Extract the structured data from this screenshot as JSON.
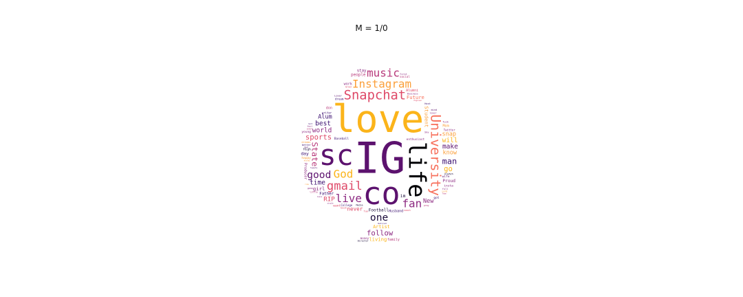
{
  "chart_data": {
    "type": "wordcloud",
    "title": "M = 1/0",
    "palette": [
      "#000004",
      "#3b0f70",
      "#5c126e",
      "#8c2981",
      "#b73779",
      "#de4968",
      "#f7705c",
      "#fb9f3a",
      "#fcb519",
      "#f5db4b"
    ],
    "words": [
      {
        "text": "IG",
        "weight": 100,
        "color": "#5c126e",
        "vertical": false
      },
      {
        "text": "love",
        "weight": 88,
        "color": "#fbb41a",
        "vertical": false
      },
      {
        "text": "life",
        "weight": 84,
        "color": "#000004",
        "vertical": true
      },
      {
        "text": "co",
        "weight": 70,
        "color": "#5c126e",
        "vertical": false
      },
      {
        "text": "sc",
        "weight": 64,
        "color": "#5c126e",
        "vertical": false
      },
      {
        "text": "Snapchat",
        "weight": 34,
        "color": "#de4968",
        "vertical": false
      },
      {
        "text": "University",
        "weight": 28,
        "color": "#f7705c",
        "vertical": true
      },
      {
        "text": "gmail",
        "weight": 24,
        "color": "#de4968",
        "vertical": false
      },
      {
        "text": "Instagram",
        "weight": 22,
        "color": "#fb9f3a",
        "vertical": false
      },
      {
        "text": "God",
        "weight": 22,
        "color": "#fbb41a",
        "vertical": false
      },
      {
        "text": "live",
        "weight": 22,
        "color": "#8c2981",
        "vertical": false
      },
      {
        "text": "music",
        "weight": 22,
        "color": "#b73779",
        "vertical": false
      },
      {
        "text": "fan",
        "weight": 22,
        "color": "#8c2981",
        "vertical": false
      },
      {
        "text": "good",
        "weight": 20,
        "color": "#5c126e",
        "vertical": false
      },
      {
        "text": "one",
        "weight": 20,
        "color": "#1a0b3a",
        "vertical": false
      },
      {
        "text": "sports",
        "weight": 18,
        "color": "#de4968",
        "vertical": false
      },
      {
        "text": "follow",
        "weight": 18,
        "color": "#8c2981",
        "vertical": false
      },
      {
        "text": "State",
        "weight": 16,
        "color": "#b73779",
        "vertical": true
      },
      {
        "text": "world",
        "weight": 16,
        "color": "#8c2981",
        "vertical": false
      },
      {
        "text": "best",
        "weight": 16,
        "color": "#3b0f70",
        "vertical": false
      },
      {
        "text": "Football",
        "weight": 16,
        "color": "#1a0b3a",
        "vertical": false
      },
      {
        "text": "time",
        "weight": 16,
        "color": "#3b0f70",
        "vertical": false
      },
      {
        "text": "man",
        "weight": 16,
        "color": "#3b0f70",
        "vertical": false
      },
      {
        "text": "make",
        "weight": 16,
        "color": "#5c126e",
        "vertical": false
      },
      {
        "text": "never",
        "weight": 16,
        "color": "#de4968",
        "vertical": false
      },
      {
        "text": "will",
        "weight": 16,
        "color": "#fbb41a",
        "vertical": false
      },
      {
        "text": "Future",
        "weight": 15,
        "color": "#f7705c",
        "vertical": false
      },
      {
        "text": "living",
        "weight": 15,
        "color": "#fbb41a",
        "vertical": false
      },
      {
        "text": "Father",
        "weight": 15,
        "color": "#3b0f70",
        "vertical": false
      },
      {
        "text": "Alum",
        "weight": 14,
        "color": "#3b0f70",
        "vertical": false
      },
      {
        "text": "know",
        "weight": 14,
        "color": "#fb9f3a",
        "vertical": false
      },
      {
        "text": "Artist",
        "weight": 14,
        "color": "#fbb41a",
        "vertical": false
      },
      {
        "text": "New",
        "weight": 14,
        "color": "#8c2981",
        "vertical": false
      },
      {
        "text": "snap",
        "weight": 14,
        "color": "#fb9f3a",
        "vertical": false
      },
      {
        "text": "go",
        "weight": 14,
        "color": "#fbb41a",
        "vertical": false
      },
      {
        "text": "RIP",
        "weight": 12,
        "color": "#de4968",
        "vertical": false
      },
      {
        "text": "girl",
        "weight": 12,
        "color": "#8c2981",
        "vertical": false
      },
      {
        "text": "people",
        "weight": 12,
        "color": "#b73779",
        "vertical": false
      },
      {
        "text": "Student",
        "weight": 12,
        "color": "#fb9f3a",
        "vertical": true
      },
      {
        "text": "enthusiast",
        "weight": 11,
        "color": "#8c2981",
        "vertical": false
      },
      {
        "text": "Baseball",
        "weight": 11,
        "color": "#3b0f70",
        "vertical": false
      },
      {
        "text": "Proud",
        "weight": 10,
        "color": "#8c2981",
        "vertical": false
      },
      {
        "text": "Husband",
        "weight": 10,
        "color": "#3b0f70",
        "vertical": false
      },
      {
        "text": "College",
        "weight": 10,
        "color": "#3b0f70",
        "vertical": false
      },
      {
        "text": "Alumni",
        "weight": 10,
        "color": "#de4968",
        "vertical": false
      },
      {
        "text": "Twitter",
        "weight": 10,
        "color": "#8c2981",
        "vertical": false
      },
      {
        "text": "family",
        "weight": 10,
        "color": "#b73779",
        "vertical": false
      },
      {
        "text": "writer",
        "weight": 10,
        "color": "#3b0f70",
        "vertical": false
      },
      {
        "text": "blessed",
        "weight": 10,
        "color": "#8c2981",
        "vertical": false
      },
      {
        "text": "happy",
        "weight": 9,
        "color": "#fb9f3a",
        "vertical": false
      },
      {
        "text": "insta",
        "weight": 9,
        "color": "#8c2981",
        "vertical": false
      },
      {
        "text": "always",
        "weight": 9,
        "color": "#1a0b3a",
        "vertical": false
      },
      {
        "text": "better",
        "weight": 9,
        "color": "#3b0f70",
        "vertical": false
      },
      {
        "text": "everything",
        "weight": 9,
        "color": "#3b0f70",
        "vertical": false
      },
      {
        "text": "stay",
        "weight": 9,
        "color": "#8c2981",
        "vertical": false
      },
      {
        "text": "want",
        "weight": 9,
        "color": "#de4968",
        "vertical": false
      },
      {
        "text": "wife",
        "weight": 9,
        "color": "#5c126e",
        "vertical": false
      },
      {
        "text": "young",
        "weight": 9,
        "color": "#8c2981",
        "vertical": false
      },
      {
        "text": "High",
        "weight": 9,
        "color": "#1a0b3a",
        "vertical": false
      },
      {
        "text": "social",
        "weight": 8,
        "color": "#b73779",
        "vertical": false
      },
      {
        "text": "dream",
        "weight": 8,
        "color": "#3b0f70",
        "vertical": false
      },
      {
        "text": "Business",
        "weight": 8,
        "color": "#8c2981",
        "vertical": false
      },
      {
        "text": "work",
        "weight": 8,
        "color": "#8c2981",
        "vertical": false
      },
      {
        "text": "money",
        "weight": 8,
        "color": "#8c2981",
        "vertical": false
      },
      {
        "text": "day",
        "weight": 8,
        "color": "#3b0f70",
        "vertical": false
      },
      {
        "text": "Director",
        "weight": 8,
        "color": "#1a0b3a",
        "vertical": false
      },
      {
        "text": "basketball",
        "weight": 8,
        "color": "#b73779",
        "vertical": false
      },
      {
        "text": "Media",
        "weight": 8,
        "color": "#1a0b3a",
        "vertical": false
      },
      {
        "text": "coach",
        "weight": 8,
        "color": "#de4968",
        "vertical": false
      },
      {
        "text": "don",
        "weight": 8,
        "color": "#b73779",
        "vertical": false
      },
      {
        "text": "lover",
        "weight": 8,
        "color": "#8c2981",
        "vertical": false
      },
      {
        "text": "im",
        "weight": 8,
        "color": "#1a0b3a",
        "vertical": false
      },
      {
        "text": "Mom",
        "weight": 8,
        "color": "#fb9f3a",
        "vertical": false
      },
      {
        "text": "little",
        "weight": 8,
        "color": "#b73779",
        "vertical": false
      },
      {
        "text": "Producer",
        "weight": 8,
        "color": "#8c2981",
        "vertical": true
      },
      {
        "text": "dreams",
        "weight": 7,
        "color": "#fb9f3a",
        "vertical": false
      },
      {
        "text": "back",
        "weight": 7,
        "color": "#de4968",
        "vertical": false
      },
      {
        "text": "full",
        "weight": 7,
        "color": "#8c2981",
        "vertical": false
      },
      {
        "text": "mind",
        "weight": 7,
        "color": "#5c126e",
        "vertical": false
      },
      {
        "text": "Host",
        "weight": 7,
        "color": "#3b0f70",
        "vertical": false
      },
      {
        "text": "Lover",
        "weight": 7,
        "color": "#5c126e",
        "vertical": false
      },
      {
        "text": "fuck",
        "weight": 7,
        "color": "#8c2981",
        "vertical": false
      },
      {
        "text": "Grad",
        "weight": 7,
        "color": "#de4968",
        "vertical": false
      },
      {
        "text": "got",
        "weight": 7,
        "color": "#3b0f70",
        "vertical": false
      },
      {
        "text": "Sky",
        "weight": 7,
        "color": "#8c2981",
        "vertical": false
      },
      {
        "text": "tweets",
        "weight": 7,
        "color": "#5c126e",
        "vertical": false
      },
      {
        "text": "Retired",
        "weight": 7,
        "color": "#3b0f70",
        "vertical": false
      },
      {
        "text": "first",
        "weight": 7,
        "color": "#8c2981",
        "vertical": false
      },
      {
        "text": "fun",
        "weight": 6,
        "color": "#de4968",
        "vertical": false
      },
      {
        "text": "pray",
        "weight": 6,
        "color": "#b73779",
        "vertical": false
      },
      {
        "text": "single",
        "weight": 6,
        "color": "#8c2981",
        "vertical": false
      },
      {
        "text": "Lord",
        "weight": 6,
        "color": "#fb9f3a",
        "vertical": false
      },
      {
        "text": "gone",
        "weight": 6,
        "color": "#8c2981",
        "vertical": false
      },
      {
        "text": "ever",
        "weight": 6,
        "color": "#b73779",
        "vertical": false
      },
      {
        "text": "Engineer",
        "weight": 6,
        "color": "#de4968",
        "vertical": false
      },
      {
        "text": "Jesus",
        "weight": 6,
        "color": "#8c2981",
        "vertical": false
      },
      {
        "text": "Hockey",
        "weight": 6,
        "color": "#fb9f3a",
        "vertical": false
      },
      {
        "text": "Real",
        "weight": 6,
        "color": "#5c126e",
        "vertical": false
      },
      {
        "text": "Team",
        "weight": 6,
        "color": "#b73779",
        "vertical": false
      },
      {
        "text": "Heart",
        "weight": 6,
        "color": "#8c2981",
        "vertical": false
      },
      {
        "text": "ride",
        "weight": 6,
        "color": "#fb9f3a",
        "vertical": false
      },
      {
        "text": "hard",
        "weight": 6,
        "color": "#3b0f70",
        "vertical": false
      }
    ]
  }
}
